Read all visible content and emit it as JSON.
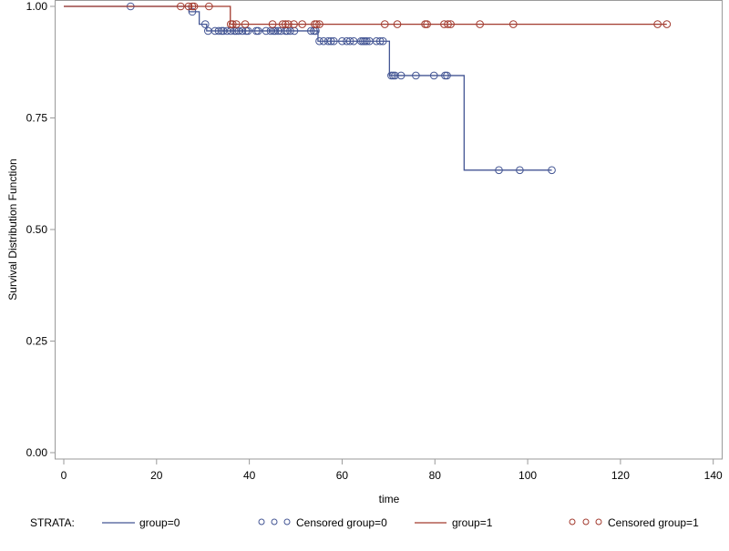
{
  "chart_data": {
    "type": "line",
    "subtype": "kaplan-meier-survival",
    "xlabel": "time",
    "ylabel": "Survival Distribution Function",
    "xlim": [
      0,
      140
    ],
    "ylim": [
      0,
      1
    ],
    "xticks": [
      "0",
      "20",
      "40",
      "60",
      "80",
      "100",
      "120",
      "140"
    ],
    "yticks": [
      "0.00",
      "0.25",
      "0.50",
      "0.75",
      "1.00"
    ],
    "legend": {
      "title": "STRATA:",
      "placement": "bottom",
      "entries": [
        {
          "label": "group=0",
          "kind": "line",
          "series": 0
        },
        {
          "label": "Censored group=0",
          "kind": "marker",
          "series": 0
        },
        {
          "label": "group=1",
          "kind": "line",
          "series": 1
        },
        {
          "label": "Censored group=1",
          "kind": "marker",
          "series": 1
        }
      ]
    },
    "series": [
      {
        "name": "group=0",
        "color": "#445694",
        "steps": [
          [
            0,
            1.0
          ],
          [
            27.0,
            0.988
          ],
          [
            29.2,
            0.96
          ],
          [
            30.8,
            0.945
          ],
          [
            54.8,
            0.922
          ],
          [
            70.2,
            0.845
          ],
          [
            86.3,
            0.633
          ]
        ],
        "end_time": 105.2,
        "censored": [
          [
            14.4,
            1.0
          ],
          [
            27.7,
            0.988
          ],
          [
            30.5,
            0.96
          ],
          [
            31.1,
            0.945
          ],
          [
            32.6,
            0.945
          ],
          [
            33.4,
            0.945
          ],
          [
            34.0,
            0.945
          ],
          [
            34.4,
            0.945
          ],
          [
            35.2,
            0.945
          ],
          [
            36.0,
            0.945
          ],
          [
            36.8,
            0.945
          ],
          [
            37.2,
            0.945
          ],
          [
            37.7,
            0.945
          ],
          [
            38.5,
            0.945
          ],
          [
            39.3,
            0.945
          ],
          [
            39.7,
            0.945
          ],
          [
            41.5,
            0.945
          ],
          [
            41.9,
            0.945
          ],
          [
            43.6,
            0.945
          ],
          [
            44.6,
            0.945
          ],
          [
            45.2,
            0.945
          ],
          [
            45.6,
            0.945
          ],
          [
            46.2,
            0.945
          ],
          [
            46.8,
            0.945
          ],
          [
            47.8,
            0.945
          ],
          [
            48.2,
            0.945
          ],
          [
            48.8,
            0.945
          ],
          [
            49.7,
            0.945
          ],
          [
            53.3,
            0.945
          ],
          [
            53.9,
            0.945
          ],
          [
            54.3,
            0.945
          ],
          [
            55.1,
            0.922
          ],
          [
            56.0,
            0.922
          ],
          [
            57.0,
            0.922
          ],
          [
            57.6,
            0.922
          ],
          [
            58.2,
            0.922
          ],
          [
            60.0,
            0.922
          ],
          [
            61.0,
            0.922
          ],
          [
            61.7,
            0.922
          ],
          [
            62.5,
            0.922
          ],
          [
            64.1,
            0.922
          ],
          [
            64.5,
            0.922
          ],
          [
            64.9,
            0.922
          ],
          [
            65.3,
            0.922
          ],
          [
            65.9,
            0.922
          ],
          [
            67.4,
            0.922
          ],
          [
            68.2,
            0.922
          ],
          [
            68.8,
            0.922
          ],
          [
            70.6,
            0.845
          ],
          [
            71.0,
            0.845
          ],
          [
            71.4,
            0.845
          ],
          [
            72.7,
            0.845
          ],
          [
            75.9,
            0.845
          ],
          [
            79.8,
            0.845
          ],
          [
            82.2,
            0.845
          ],
          [
            82.6,
            0.845
          ],
          [
            93.8,
            0.633
          ],
          [
            98.3,
            0.633
          ],
          [
            105.2,
            0.633
          ]
        ]
      },
      {
        "name": "group=1",
        "color": "#A23A2E",
        "steps": [
          [
            0,
            1.0
          ],
          [
            35.9,
            0.96
          ]
        ],
        "end_time": 130.0,
        "censored": [
          [
            25.2,
            1.0
          ],
          [
            26.9,
            1.0
          ],
          [
            27.7,
            1.0
          ],
          [
            28.1,
            1.0
          ],
          [
            31.3,
            1.0
          ],
          [
            36.0,
            0.96
          ],
          [
            36.4,
            0.96
          ],
          [
            37.2,
            0.96
          ],
          [
            39.1,
            0.96
          ],
          [
            45.0,
            0.96
          ],
          [
            47.2,
            0.96
          ],
          [
            47.8,
            0.96
          ],
          [
            48.4,
            0.96
          ],
          [
            49.6,
            0.96
          ],
          [
            51.4,
            0.96
          ],
          [
            54.1,
            0.96
          ],
          [
            54.5,
            0.96
          ],
          [
            55.1,
            0.96
          ],
          [
            69.2,
            0.96
          ],
          [
            71.9,
            0.96
          ],
          [
            77.9,
            0.96
          ],
          [
            78.3,
            0.96
          ],
          [
            82.0,
            0.96
          ],
          [
            82.8,
            0.96
          ],
          [
            83.4,
            0.96
          ],
          [
            89.7,
            0.96
          ],
          [
            96.9,
            0.96
          ],
          [
            128.0,
            0.96
          ],
          [
            130.0,
            0.96
          ]
        ]
      }
    ]
  }
}
